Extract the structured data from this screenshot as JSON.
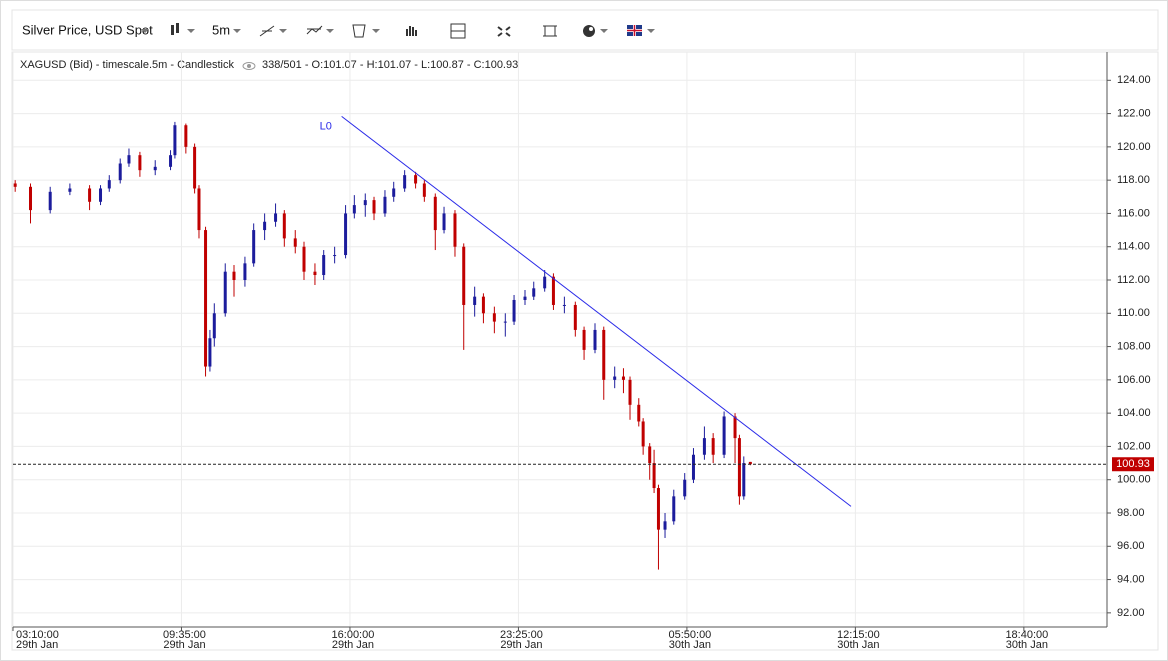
{
  "toolbar": {
    "instrument": "Silver Price, USD Spot",
    "interval": "5m"
  },
  "chart_data": {
    "type": "candlestick",
    "title": "XAGUSD (Bid) - timescale.5m - Candlestick",
    "info": "338/501 - O:101.07 - H:101.07 - L:100.87 - C:100.93",
    "up_color": "#1c1c9c",
    "down_color": "#c00000",
    "x": [
      1,
      8,
      17,
      26,
      35,
      40,
      44,
      49,
      53,
      58,
      65,
      72,
      74,
      79,
      83,
      85,
      88,
      90,
      92,
      97,
      101,
      106,
      110,
      115,
      120,
      124,
      129,
      133,
      138,
      142,
      147,
      152,
      156,
      161,
      165,
      170,
      174,
      179,
      184,
      188,
      193,
      197,
      202,
      206,
      211,
      215,
      220,
      225,
      229,
      234,
      238,
      243,
      247,
      252,
      257,
      261,
      266,
      270,
      275,
      279,
      282,
      286,
      288,
      291,
      293,
      295,
      298,
      302,
      307,
      311,
      316,
      320,
      325,
      330,
      332,
      334,
      337
    ],
    "open": [
      117.8,
      117.6,
      116.2,
      117.3,
      117.5,
      116.7,
      117.5,
      118.0,
      119.0,
      119.5,
      118.6,
      118.8,
      119.5,
      121.3,
      120.0,
      117.5,
      115.0,
      106.8,
      108.5,
      110.0,
      112.5,
      112.0,
      113.0,
      115.0,
      115.5,
      116.0,
      114.5,
      114.0,
      112.5,
      112.3,
      113.5,
      113.5,
      116.0,
      116.5,
      116.8,
      116.0,
      117.0,
      117.5,
      118.3,
      117.8,
      117.0,
      115.0,
      116.0,
      114.0,
      110.5,
      111.0,
      110.0,
      109.5,
      109.5,
      110.8,
      111.0,
      111.5,
      112.2,
      110.5,
      110.5,
      109.0,
      107.8,
      109.0,
      106.0,
      106.2,
      106.0,
      104.5,
      103.5,
      102.0,
      101.0,
      99.5,
      97.0,
      97.5,
      99.0,
      100.0,
      101.5,
      102.5,
      101.5,
      103.8,
      102.5,
      99.0,
      101.07
    ],
    "high": [
      118.0,
      117.8,
      117.6,
      117.8,
      117.7,
      117.7,
      118.3,
      119.3,
      119.9,
      119.7,
      119.2,
      119.8,
      121.5,
      121.4,
      120.2,
      117.7,
      115.2,
      109.0,
      110.6,
      113.0,
      112.9,
      113.4,
      115.4,
      116.0,
      116.6,
      116.2,
      115.0,
      114.3,
      113.0,
      113.8,
      114.0,
      116.5,
      117.1,
      117.2,
      117.0,
      117.4,
      117.9,
      118.6,
      118.5,
      118.0,
      117.2,
      116.4,
      116.2,
      114.2,
      111.6,
      111.2,
      110.4,
      110.0,
      111.1,
      111.4,
      111.9,
      112.6,
      112.4,
      111.0,
      110.7,
      109.2,
      109.4,
      109.2,
      106.8,
      106.7,
      106.2,
      104.9,
      103.7,
      102.2,
      101.8,
      99.7,
      98.0,
      99.4,
      100.4,
      101.9,
      103.2,
      102.8,
      104.1,
      104.0,
      102.7,
      101.4,
      101.07
    ],
    "low": [
      117.3,
      115.4,
      116.0,
      117.1,
      116.2,
      116.5,
      117.3,
      117.8,
      118.8,
      118.2,
      118.3,
      118.6,
      119.3,
      119.6,
      117.2,
      114.5,
      106.2,
      106.5,
      108.0,
      109.8,
      111.0,
      111.6,
      112.8,
      114.4,
      115.2,
      114.0,
      113.6,
      112.0,
      111.7,
      112.0,
      113.0,
      113.3,
      115.7,
      115.8,
      115.6,
      115.8,
      116.7,
      117.3,
      117.5,
      116.7,
      113.8,
      114.8,
      113.4,
      107.8,
      109.8,
      109.4,
      108.8,
      108.6,
      109.3,
      110.5,
      110.8,
      111.3,
      110.2,
      110.0,
      108.6,
      107.2,
      107.6,
      104.8,
      105.5,
      105.2,
      103.6,
      103.2,
      101.5,
      100.0,
      99.2,
      94.6,
      96.5,
      97.3,
      98.8,
      99.8,
      101.2,
      101.0,
      101.3,
      101.0,
      98.5,
      98.8,
      100.87
    ],
    "close": [
      117.6,
      116.2,
      117.3,
      117.5,
      116.7,
      117.5,
      118.0,
      119.0,
      119.5,
      118.6,
      118.8,
      119.5,
      121.3,
      120.0,
      117.5,
      115.0,
      106.8,
      108.5,
      110.0,
      112.5,
      112.0,
      113.0,
      115.0,
      115.5,
      116.0,
      114.5,
      114.0,
      112.5,
      112.3,
      113.5,
      113.5,
      116.0,
      116.5,
      116.8,
      116.0,
      117.0,
      117.5,
      118.3,
      117.8,
      117.0,
      115.0,
      116.0,
      114.0,
      110.5,
      111.0,
      110.0,
      109.5,
      109.5,
      110.8,
      111.0,
      111.5,
      112.2,
      110.5,
      110.5,
      109.0,
      107.8,
      109.0,
      106.0,
      106.2,
      106.0,
      104.5,
      103.5,
      102.0,
      101.0,
      99.5,
      97.0,
      97.5,
      99.0,
      100.0,
      101.5,
      102.5,
      101.5,
      103.8,
      102.5,
      99.0,
      101.0,
      100.93
    ],
    "last_price": 100.93,
    "trendline": {
      "label": "L0",
      "x": [
        150.2,
        383
      ],
      "y": [
        121.83,
        98.4
      ],
      "color": "#2a2ae8"
    },
    "xlim": [
      0,
      500
    ],
    "xticks": [
      {
        "value": 0,
        "label": "03:10:00",
        "date": "29th Jan"
      },
      {
        "value": 77,
        "label": "09:35:00",
        "date": "29th Jan"
      },
      {
        "value": 154,
        "label": "16:00:00",
        "date": "29th Jan"
      },
      {
        "value": 231,
        "label": "23:25:00",
        "date": "29th Jan"
      },
      {
        "value": 308,
        "label": "05:50:00",
        "date": "30th Jan"
      },
      {
        "value": 385,
        "label": "12:15:00",
        "date": "30th Jan"
      },
      {
        "value": 462,
        "label": "18:40:00",
        "date": "30th Jan"
      }
    ],
    "ylim": [
      91.15,
      125.7
    ],
    "yticks": [
      {
        "value": 92,
        "label": "92.00"
      },
      {
        "value": 94,
        "label": "94.00"
      },
      {
        "value": 96,
        "label": "96.00"
      },
      {
        "value": 98,
        "label": "98.00"
      },
      {
        "value": 100,
        "label": "100.00"
      },
      {
        "value": 102,
        "label": "102.00"
      },
      {
        "value": 104,
        "label": "104.00"
      },
      {
        "value": 106,
        "label": "106.00"
      },
      {
        "value": 108,
        "label": "108.00"
      },
      {
        "value": 110,
        "label": "110.00"
      },
      {
        "value": 112,
        "label": "112.00"
      },
      {
        "value": 114,
        "label": "114.00"
      },
      {
        "value": 116,
        "label": "116.00"
      },
      {
        "value": 118,
        "label": "118.00"
      },
      {
        "value": 120,
        "label": "120.00"
      },
      {
        "value": 122,
        "label": "122.00"
      },
      {
        "value": 124,
        "label": "124.00"
      }
    ],
    "grid": true
  }
}
